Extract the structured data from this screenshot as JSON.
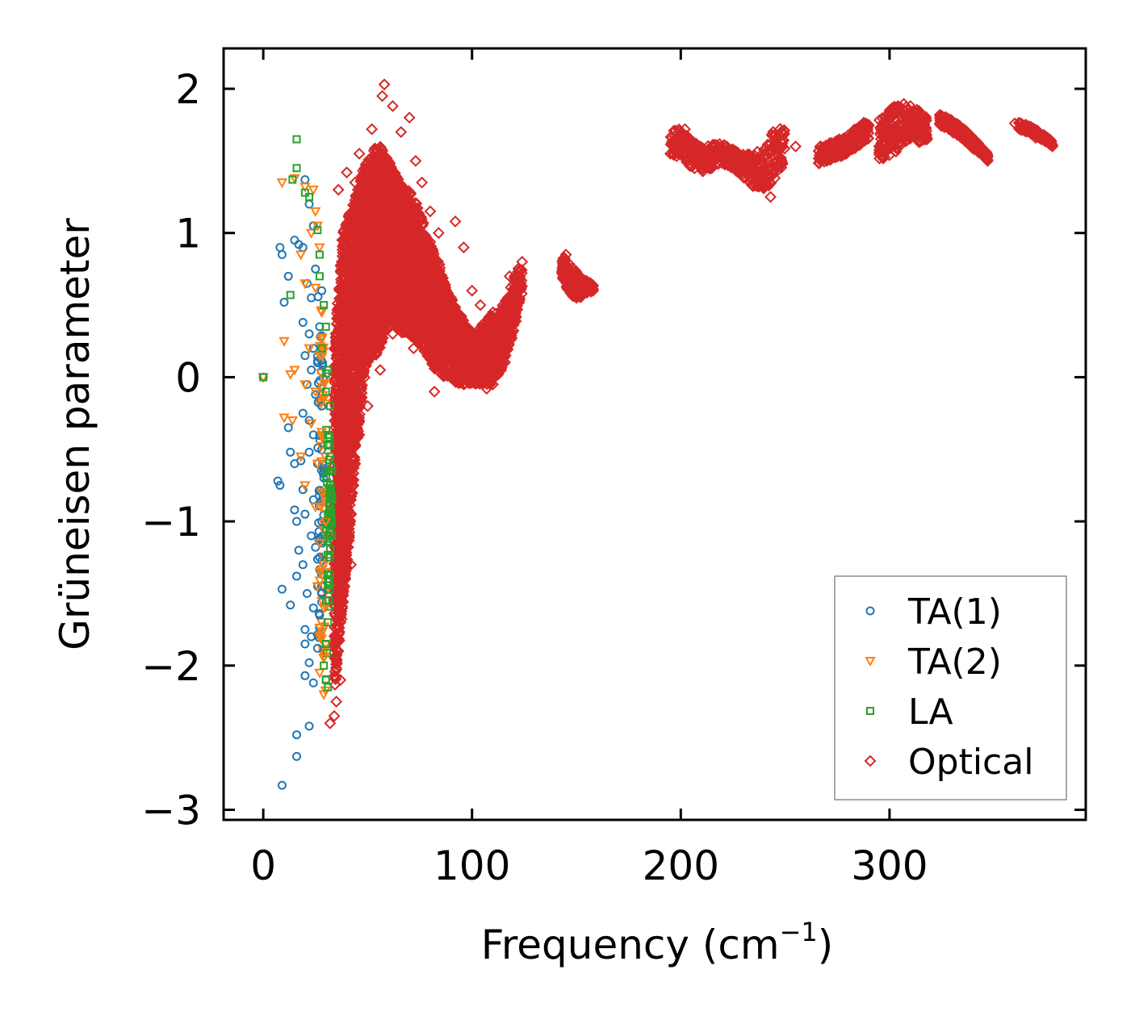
{
  "chart_data": {
    "type": "scatter",
    "title": "",
    "xlabel": "Frequency (cm",
    "xlabel_sup": "−1",
    "xlabel_end": ")",
    "ylabel": "Grüneisen parameter",
    "xlim": [
      -19,
      394
    ],
    "ylim": [
      -3.07,
      2.28
    ],
    "xticks": [
      0,
      100,
      200,
      300
    ],
    "xtick_labels": [
      "0",
      "100",
      "200",
      "300"
    ],
    "yticks": [
      -3,
      -2,
      -1,
      0,
      1,
      2
    ],
    "ytick_labels": [
      "−3",
      "−2",
      "−1",
      "0",
      "1",
      "2"
    ],
    "grid": false,
    "legend_position": "bottom-right",
    "series": [
      {
        "name": "TA(1)",
        "marker": "circle",
        "color": "#1f77b4",
        "points": [
          [
            0,
            0
          ],
          [
            8,
            0.9
          ],
          [
            9,
            0.85
          ],
          [
            12,
            0.7
          ],
          [
            10,
            0.52
          ],
          [
            15,
            0.95
          ],
          [
            17,
            0.92
          ],
          [
            19,
            0.9
          ],
          [
            20,
            1.37
          ],
          [
            22,
            1.2
          ],
          [
            24,
            1.05
          ],
          [
            21,
            0.65
          ],
          [
            23,
            0.55
          ],
          [
            19,
            0.38
          ],
          [
            22,
            0.3
          ],
          [
            24,
            0.2
          ],
          [
            20,
            0.15
          ],
          [
            23,
            0.05
          ],
          [
            26,
            0.1
          ],
          [
            21,
            -0.05
          ],
          [
            25,
            -0.12
          ],
          [
            19,
            -0.25
          ],
          [
            22,
            -0.3
          ],
          [
            24,
            -0.4
          ],
          [
            12,
            -0.35
          ],
          [
            13,
            -0.52
          ],
          [
            15,
            -0.6
          ],
          [
            18,
            -0.58
          ],
          [
            22,
            -0.52
          ],
          [
            26,
            -0.6
          ],
          [
            7,
            -0.72
          ],
          [
            8,
            -0.75
          ],
          [
            19,
            -0.78
          ],
          [
            24,
            -0.85
          ],
          [
            15,
            -0.92
          ],
          [
            20,
            -0.95
          ],
          [
            16,
            -1.0
          ],
          [
            23,
            -1.1
          ],
          [
            17,
            -1.2
          ],
          [
            25,
            -1.18
          ],
          [
            19,
            -1.3
          ],
          [
            16,
            -1.38
          ],
          [
            21,
            -1.5
          ],
          [
            26,
            -1.45
          ],
          [
            9,
            -1.47
          ],
          [
            13,
            -1.58
          ],
          [
            24,
            -1.6
          ],
          [
            27,
            -1.65
          ],
          [
            20,
            -1.75
          ],
          [
            23,
            -1.8
          ],
          [
            20,
            -1.85
          ],
          [
            26,
            -1.88
          ],
          [
            22,
            -1.98
          ],
          [
            20,
            -2.07
          ],
          [
            24,
            -2.12
          ],
          [
            22,
            -2.42
          ],
          [
            16,
            -2.48
          ],
          [
            16,
            -2.63
          ],
          [
            9,
            -2.83
          ],
          [
            28,
            -0.2
          ],
          [
            27,
            0.35
          ],
          [
            28,
            0.6
          ],
          [
            25,
            0.75
          ],
          [
            28,
            -1.0
          ],
          [
            27,
            -1.25
          ],
          [
            28,
            -1.5
          ]
        ]
      },
      {
        "name": "TA(2)",
        "marker": "triangle-down",
        "color": "#ff7f0e",
        "points": [
          [
            0,
            0
          ],
          [
            9,
            1.35
          ],
          [
            15,
            1.38
          ],
          [
            20,
            1.32
          ],
          [
            24,
            1.3
          ],
          [
            25,
            1.15
          ],
          [
            26,
            1.05
          ],
          [
            23,
            1.0
          ],
          [
            27,
            0.9
          ],
          [
            18,
            0.85
          ],
          [
            20,
            0.65
          ],
          [
            25,
            0.62
          ],
          [
            28,
            0.45
          ],
          [
            10,
            0.25
          ],
          [
            22,
            0.2
          ],
          [
            27,
            0.15
          ],
          [
            15,
            0.05
          ],
          [
            13,
            0.02
          ],
          [
            20,
            -0.05
          ],
          [
            25,
            -0.1
          ],
          [
            29,
            -0.15
          ],
          [
            10,
            -0.28
          ],
          [
            14,
            -0.3
          ],
          [
            23,
            -0.32
          ],
          [
            28,
            -0.38
          ],
          [
            18,
            -0.55
          ],
          [
            26,
            -0.6
          ],
          [
            20,
            -0.75
          ],
          [
            28,
            -0.8
          ],
          [
            25,
            -0.9
          ],
          [
            30,
            -1.0
          ],
          [
            27,
            -1.15
          ],
          [
            29,
            -1.3
          ],
          [
            26,
            -1.45
          ],
          [
            29,
            -1.6
          ],
          [
            27,
            -1.8
          ],
          [
            29,
            -1.95
          ],
          [
            27,
            -2.05
          ],
          [
            29,
            -2.2
          ]
        ]
      },
      {
        "name": "LA",
        "marker": "square",
        "color": "#2ca02c",
        "points": [
          [
            0,
            0
          ],
          [
            16,
            1.65
          ],
          [
            16,
            1.45
          ],
          [
            14,
            1.37
          ],
          [
            20,
            1.28
          ],
          [
            22,
            1.25
          ],
          [
            26,
            1.02
          ],
          [
            27,
            0.85
          ],
          [
            27,
            0.7
          ],
          [
            13,
            0.57
          ],
          [
            29,
            0.5
          ],
          [
            30,
            0.35
          ],
          [
            28,
            0.2
          ],
          [
            31,
            0.05
          ],
          [
            30,
            -0.1
          ],
          [
            32,
            -0.2
          ],
          [
            31,
            -0.4
          ],
          [
            32,
            -0.55
          ],
          [
            33,
            -0.65
          ],
          [
            32,
            -0.75
          ],
          [
            33,
            -0.85
          ],
          [
            31,
            -0.95
          ],
          [
            33,
            -1.1
          ],
          [
            32,
            -1.25
          ],
          [
            31,
            -1.4
          ],
          [
            30,
            -1.55
          ],
          [
            31,
            -1.7
          ],
          [
            30,
            -1.85
          ],
          [
            29,
            -2.0
          ],
          [
            30,
            -2.1
          ],
          [
            31,
            -2.15
          ]
        ]
      },
      {
        "name": "Optical",
        "marker": "diamond",
        "color": "#d62728",
        "points": [
          [
            58,
            2.03
          ],
          [
            57,
            1.95
          ],
          [
            62,
            1.88
          ],
          [
            70,
            1.8
          ],
          [
            52,
            1.72
          ],
          [
            66,
            1.7
          ],
          [
            46,
            1.55
          ],
          [
            40,
            1.42
          ],
          [
            44,
            1.35
          ],
          [
            36,
            1.3
          ],
          [
            54,
            1.4
          ],
          [
            76,
            1.35
          ],
          [
            73,
            1.5
          ],
          [
            80,
            1.15
          ],
          [
            92,
            1.08
          ],
          [
            84,
            1.0
          ],
          [
            96,
            0.9
          ],
          [
            100,
            0.6
          ],
          [
            104,
            0.5
          ],
          [
            110,
            0.45
          ],
          [
            118,
            0.7
          ],
          [
            124,
            0.8
          ],
          [
            116,
            0.3
          ],
          [
            110,
            -0.05
          ],
          [
            107,
            -0.08
          ],
          [
            96,
            -0.05
          ],
          [
            90,
            0.0
          ],
          [
            84,
            0.2
          ],
          [
            82,
            -0.1
          ],
          [
            72,
            0.2
          ],
          [
            62,
            0.3
          ],
          [
            56,
            0.05
          ],
          [
            50,
            -0.2
          ],
          [
            46,
            -0.4
          ],
          [
            44,
            -0.6
          ],
          [
            42,
            -0.8
          ],
          [
            40,
            -1.1
          ],
          [
            42,
            -1.3
          ],
          [
            38,
            -1.5
          ],
          [
            37,
            -1.7
          ],
          [
            36,
            -1.9
          ],
          [
            37,
            -2.1
          ],
          [
            35,
            -2.25
          ],
          [
            32,
            -2.4
          ],
          [
            34,
            -2.35
          ],
          [
            145,
            0.85
          ],
          [
            150,
            0.6
          ],
          [
            157,
            0.62
          ],
          [
            195,
            1.55
          ],
          [
            202,
            1.72
          ],
          [
            212,
            1.5
          ],
          [
            225,
            1.55
          ],
          [
            235,
            1.4
          ],
          [
            243,
            1.25
          ],
          [
            248,
            1.7
          ],
          [
            255,
            1.6
          ],
          [
            270,
            1.5
          ],
          [
            280,
            1.58
          ],
          [
            290,
            1.75
          ],
          [
            295,
            1.6
          ],
          [
            300,
            1.85
          ],
          [
            310,
            1.88
          ],
          [
            318,
            1.65
          ],
          [
            325,
            1.8
          ],
          [
            340,
            1.6
          ],
          [
            347,
            1.5
          ],
          [
            360,
            1.76
          ],
          [
            370,
            1.66
          ],
          [
            378,
            1.6
          ]
        ]
      }
    ],
    "optical_bands": [
      {
        "x": [
          34,
          36,
          38,
          40,
          42,
          44,
          46,
          48,
          50,
          52,
          54,
          56,
          58,
          60,
          62,
          64,
          66,
          68,
          70,
          72,
          74,
          76,
          78,
          80,
          82,
          84,
          86,
          88,
          90,
          92,
          94,
          96,
          98,
          100,
          102,
          104,
          106,
          108,
          110,
          112,
          114,
          116,
          118,
          120,
          122,
          124
        ],
        "lo": [
          -2.2,
          -1.9,
          -1.6,
          -1.3,
          -1.0,
          -0.6,
          -0.3,
          -0.05,
          0.1,
          0.15,
          0.15,
          0.2,
          0.3,
          0.35,
          0.35,
          0.35,
          0.3,
          0.3,
          0.3,
          0.25,
          0.25,
          0.2,
          0.15,
          0.1,
          0.05,
          0.05,
          0.0,
          0.0,
          0.0,
          -0.05,
          -0.05,
          -0.05,
          -0.05,
          -0.05,
          -0.05,
          -0.05,
          -0.05,
          -0.05,
          -0.05,
          0.0,
          0.05,
          0.1,
          0.2,
          0.3,
          0.45,
          0.55
        ],
        "hi": [
          0.2,
          0.6,
          1.0,
          1.1,
          1.15,
          1.25,
          1.35,
          1.45,
          1.5,
          1.55,
          1.6,
          1.6,
          1.55,
          1.5,
          1.45,
          1.4,
          1.35,
          1.3,
          1.3,
          1.25,
          1.2,
          1.1,
          1.0,
          0.95,
          0.85,
          0.8,
          0.7,
          0.6,
          0.55,
          0.5,
          0.45,
          0.4,
          0.35,
          0.3,
          0.3,
          0.35,
          0.4,
          0.42,
          0.45,
          0.45,
          0.5,
          0.55,
          0.6,
          0.7,
          0.75,
          0.82
        ]
      },
      {
        "x": [
          143,
          146,
          149,
          152,
          155,
          158
        ],
        "lo": [
          0.7,
          0.6,
          0.55,
          0.55,
          0.58,
          0.6
        ],
        "hi": [
          0.85,
          0.8,
          0.75,
          0.7,
          0.67,
          0.64
        ]
      },
      {
        "x": [
          195,
          200,
          205,
          210,
          215,
          220,
          225,
          230,
          235,
          240,
          245,
          250
        ],
        "lo": [
          1.55,
          1.52,
          1.45,
          1.42,
          1.45,
          1.48,
          1.45,
          1.38,
          1.32,
          1.28,
          1.35,
          1.5
        ],
        "hi": [
          1.72,
          1.72,
          1.65,
          1.6,
          1.62,
          1.62,
          1.58,
          1.55,
          1.55,
          1.6,
          1.75,
          1.72
        ]
      },
      {
        "x": [
          266,
          270,
          275,
          280,
          285,
          290
        ],
        "lo": [
          1.48,
          1.5,
          1.52,
          1.55,
          1.6,
          1.65
        ],
        "hi": [
          1.6,
          1.62,
          1.65,
          1.68,
          1.75,
          1.78
        ]
      },
      {
        "x": [
          295,
          298,
          302,
          306,
          310,
          314,
          318
        ],
        "lo": [
          1.5,
          1.52,
          1.55,
          1.6,
          1.65,
          1.62,
          1.65
        ],
        "hi": [
          1.8,
          1.82,
          1.88,
          1.9,
          1.88,
          1.85,
          1.8
        ]
      },
      {
        "x": [
          324,
          328,
          332,
          336,
          340,
          344,
          347
        ],
        "lo": [
          1.75,
          1.72,
          1.68,
          1.64,
          1.58,
          1.54,
          1.5
        ],
        "hi": [
          1.82,
          1.8,
          1.76,
          1.72,
          1.66,
          1.6,
          1.55
        ]
      },
      {
        "x": [
          362,
          366,
          370,
          374,
          378
        ],
        "lo": [
          1.72,
          1.7,
          1.67,
          1.64,
          1.6
        ],
        "hi": [
          1.77,
          1.75,
          1.72,
          1.68,
          1.64
        ]
      }
    ],
    "acoustic_bands": [
      {
        "series": "TA(1)",
        "x": [
          26,
          27,
          28,
          29
        ],
        "lo": [
          -1.9,
          -1.8,
          -1.6,
          -1.4
        ],
        "hi": [
          0.6,
          0.5,
          0.3,
          0.1
        ]
      },
      {
        "series": "TA(2)",
        "x": [
          27,
          28,
          29,
          30
        ],
        "lo": [
          -1.8,
          -1.9,
          -2.1,
          -2.2
        ],
        "hi": [
          0.6,
          0.4,
          0.2,
          0.0
        ]
      },
      {
        "series": "LA",
        "x": [
          30,
          31,
          32,
          33
        ],
        "lo": [
          -2.15,
          -1.8,
          -1.4,
          -1.0
        ],
        "hi": [
          0.3,
          0.0,
          -0.3,
          -0.6
        ]
      }
    ]
  }
}
